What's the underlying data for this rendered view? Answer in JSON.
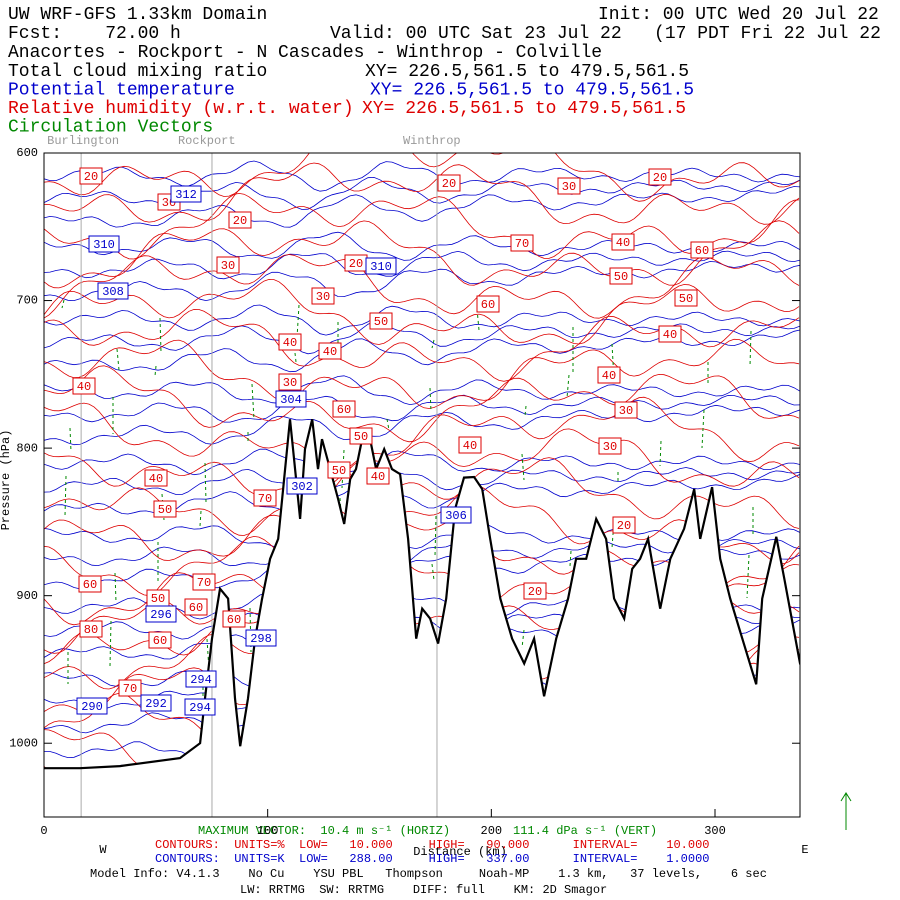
{
  "chart_data": {
    "type": "cross-section",
    "title": "UW WRF-GFS 1.33km Domain",
    "init": "Init: 00 UTC Wed 20 Jul 22",
    "forecast": "Fcst:    72.00 h",
    "valid": "Valid: 00 UTC Sat 23 Jul 22   (17 PDT Fri 22 Jul 22  )",
    "route": "Anacortes - Rockport - N Cascades - Winthrop - Colville",
    "fields": [
      {
        "name": "Total cloud mixing ratio",
        "xy": "XY= 226.5,561.5 to 479.5,561.5",
        "color": "#000000"
      },
      {
        "name": "Potential temperature",
        "xy": "XY= 226.5,561.5 to 479.5,561.5",
        "color": "#0000cc"
      },
      {
        "name": "Relative humidity (w.r.t. water)",
        "xy": "XY= 226.5,561.5 to 479.5,561.5",
        "color": "#dd0000"
      },
      {
        "name": "Circulation Vectors",
        "color": "#008800"
      }
    ],
    "locations": [
      {
        "name": "Burlington",
        "x": 16.6
      },
      {
        "name": "Rockport",
        "x": 75.1
      },
      {
        "name": "Winthrop",
        "x": 175.7
      }
    ],
    "x_label": "Distance (km)",
    "y_label": "Pressure (hPa)",
    "direction_labels": [
      "W",
      "E"
    ],
    "xlim": [
      0,
      338
    ],
    "xticks": [
      0,
      100,
      200,
      300
    ],
    "ylim": [
      600,
      1050
    ],
    "yticks": [
      600,
      700,
      800,
      900,
      1000
    ],
    "terrain": {
      "color": "#000000",
      "x": [
        0,
        16.1,
        34.0,
        60.8,
        69.8,
        72.0,
        75.1,
        78.7,
        82.3,
        85.4,
        87.7,
        91.2,
        94.4,
        97.5,
        101.1,
        104.7,
        107.8,
        110.0,
        112.7,
        114.5,
        116.7,
        119.9,
        122.5,
        124.3,
        127.9,
        131.5,
        134.2,
        136.9,
        139.5,
        142.2,
        145.8,
        148.5,
        152.1,
        155.6,
        159.2,
        162.8,
        166.4,
        169.1,
        172.6,
        176.2,
        179.8,
        183.8,
        187.8,
        192.3,
        195.9,
        199.5,
        204.0,
        209.3,
        214.7,
        219.1,
        223.6,
        229.0,
        234.3,
        237.9,
        242.4,
        246.9,
        251.3,
        254.9,
        259.4,
        263.0,
        266.5,
        270.1,
        275.5,
        280.0,
        286.2,
        290.7,
        293.4,
        298.7,
        302.3,
        306.8,
        312.2,
        318.4,
        321.1,
        327.4,
        331.0,
        338.1
      ],
      "values": [
        1016.9,
        1016.9,
        1015.5,
        1010.1,
        1000.0,
        969.6,
        929.1,
        895.3,
        902.0,
        969.6,
        1002.0,
        969.6,
        929.1,
        902.0,
        875.0,
        861.5,
        814.2,
        780.4,
        821.0,
        848.0,
        800.7,
        780.4,
        814.2,
        793.9,
        814.2,
        834.5,
        851.4,
        821.0,
        814.2,
        793.9,
        793.9,
        814.2,
        800.7,
        814.2,
        817.6,
        861.5,
        929.1,
        908.8,
        915.5,
        932.4,
        902.0,
        841.2,
        820.0,
        819.6,
        827.7,
        861.5,
        902.0,
        929.1,
        946.0,
        929.1,
        968.2,
        929.1,
        902.0,
        875.0,
        875.0,
        848.0,
        861.5,
        902.0,
        915.5,
        881.8,
        875.0,
        861.5,
        908.8,
        875.0,
        854.7,
        827.7,
        861.5,
        826.4,
        875.0,
        902.0,
        929.1,
        960.1,
        902.0,
        860.1,
        888.5,
        946.6
      ]
    },
    "theta_labels": {
      "color": "#0000cc",
      "values": [
        312,
        310,
        308,
        310,
        304,
        302,
        306,
        298,
        296,
        294,
        294,
        292,
        290
      ]
    },
    "rh_labels": {
      "color": "#dd0000",
      "values": [
        20,
        30,
        20,
        30,
        20,
        30,
        20,
        70,
        40,
        60,
        20,
        30,
        50,
        50,
        60,
        50,
        40,
        40,
        40,
        40,
        30,
        40,
        60,
        30,
        50,
        40,
        30,
        50,
        40,
        40,
        70,
        50,
        20,
        60,
        70,
        20,
        50,
        60,
        60,
        80,
        60,
        70
      ]
    },
    "vector_info": [
      "MAXIMUM VECTOR:  10.4 m s⁻¹ (HORIZ)",
      "111.4 dPa s⁻¹ (VERT)"
    ],
    "rh_contours": "CONTOURS:  UNITS=%  LOW=   10.000     HIGH=   90.000      INTERVAL=    10.000",
    "theta_contours": "CONTOURS:  UNITS=K  LOW=   288.00     HIGH=   337.00      INTERVAL=    1.0000",
    "model_info": "Model Info: V4.1.3    No Cu    YSU PBL   Thompson     Noah-MP    1.3 km,   37 levels,    6 sec",
    "physics": "LW: RRTMG  SW: RRTMG    DIFF: full    KM: 2D Smagor"
  }
}
